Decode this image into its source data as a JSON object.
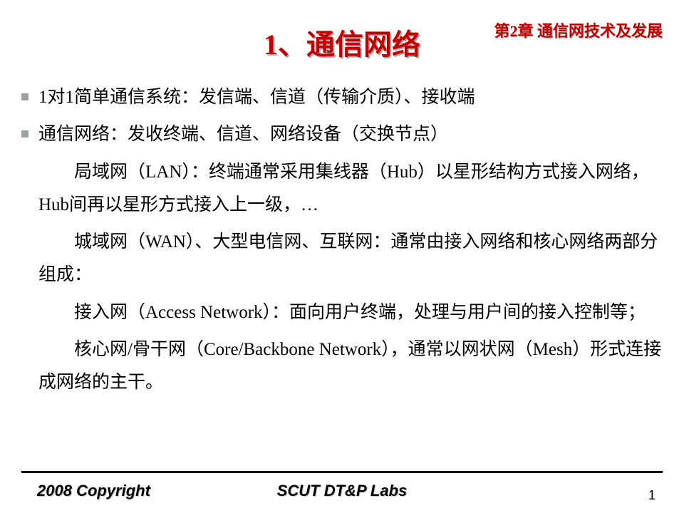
{
  "chapter": "第2章 通信网技术及发展",
  "title": "1、通信网络",
  "bullets": [
    "1对1简单通信系统：发信端、信道（传输介质）、接收端",
    "通信网络：发收终端、信道、网络设备（交换节点）"
  ],
  "paras": [
    "局域网（LAN）：终端通常采用集线器（Hub）以星形结构方式接入网络，Hub间再以星形方式接入上一级，…",
    "城域网（WAN）、大型电信网、互联网：通常由接入网络和核心网络两部分组成：",
    "接入网（Access Network）：面向用户终端，处理与用户间的接入控制等；",
    "核心网/骨干网（Core/Backbone Network），通常以网状网（Mesh）形式连接成网络的主干。"
  ],
  "footer": {
    "copyright": "2008 Copyright",
    "lab": "SCUT DT&P Labs",
    "page": "1"
  },
  "colors": {
    "accent": "#c00000",
    "bullet": "#9fa0a0",
    "text": "#000000",
    "background": "#ffffff"
  },
  "typography": {
    "title_fontsize": 40,
    "chapter_fontsize": 22,
    "body_fontsize": 25,
    "footer_fontsize": 22,
    "body_font": "SimSun",
    "footer_font": "Comic Sans MS"
  }
}
